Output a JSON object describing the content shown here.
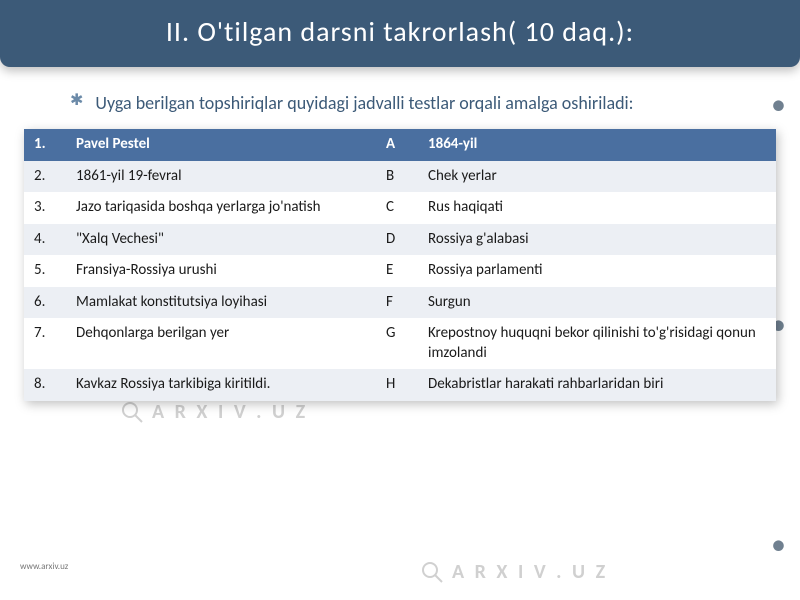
{
  "title": "II. O'tilgan darsni takrorlash( 10 daq.):",
  "intro_text": "Uyga berilgan topshiriqlar quyidagi jadvalli testlar orqali amalga oshiriladi:",
  "watermark_text": "A R X I V . U Z",
  "footer_url": "www.arxiv.uz",
  "colors": {
    "header_bg": "#3c5a78",
    "header_text": "#ffffff",
    "intro_text": "#3c5a78",
    "table_header_bg": "#4a6fa0",
    "table_header_text": "#ffffff",
    "row_even_bg": "#eceff4",
    "row_odd_bg": "#ffffff",
    "cell_text": "#1a1a1a",
    "watermark": "#d0d0d0",
    "footer": "#787878",
    "bullet": "#6b8aa8"
  },
  "table": {
    "rows": [
      {
        "num": "1.",
        "left": "Pavel Pestel",
        "letter": "A",
        "right": "1864-yil",
        "header": true
      },
      {
        "num": "2.",
        "left": "1861-yil 19-fevral",
        "letter": "B",
        "right": "Chek yerlar",
        "header": false
      },
      {
        "num": "3.",
        "left": "Jazo tariqasida boshqa yerlarga jo'natish",
        "letter": "C",
        "right": "Rus haqiqati",
        "header": false
      },
      {
        "num": "4.",
        "left": "\"Xalq Vechesi\"",
        "letter": "D",
        "right": "Rossiya g'alabasi",
        "header": false
      },
      {
        "num": "5.",
        "left": "Fransiya-Rossiya urushi",
        "letter": "E",
        "right": "Rossiya parlamenti",
        "header": false
      },
      {
        "num": "6.",
        "left": "Mamlakat konstitutsiya loyihasi",
        "letter": "F",
        "right": "Surgun",
        "header": false
      },
      {
        "num": "7.",
        "left": "Dehqonlarga berilgan yer",
        "letter": "G",
        "right": "Krepostnoy huquqni bekor qilinishi to'g'risidagi qonun imzolandi",
        "header": false
      },
      {
        "num": "8.",
        "left": "Kavkaz Rossiya tarkibiga kiritildi.",
        "letter": "H",
        "right": "Dekabristlar harakati rahbarlaridan biri",
        "header": false
      }
    ]
  }
}
